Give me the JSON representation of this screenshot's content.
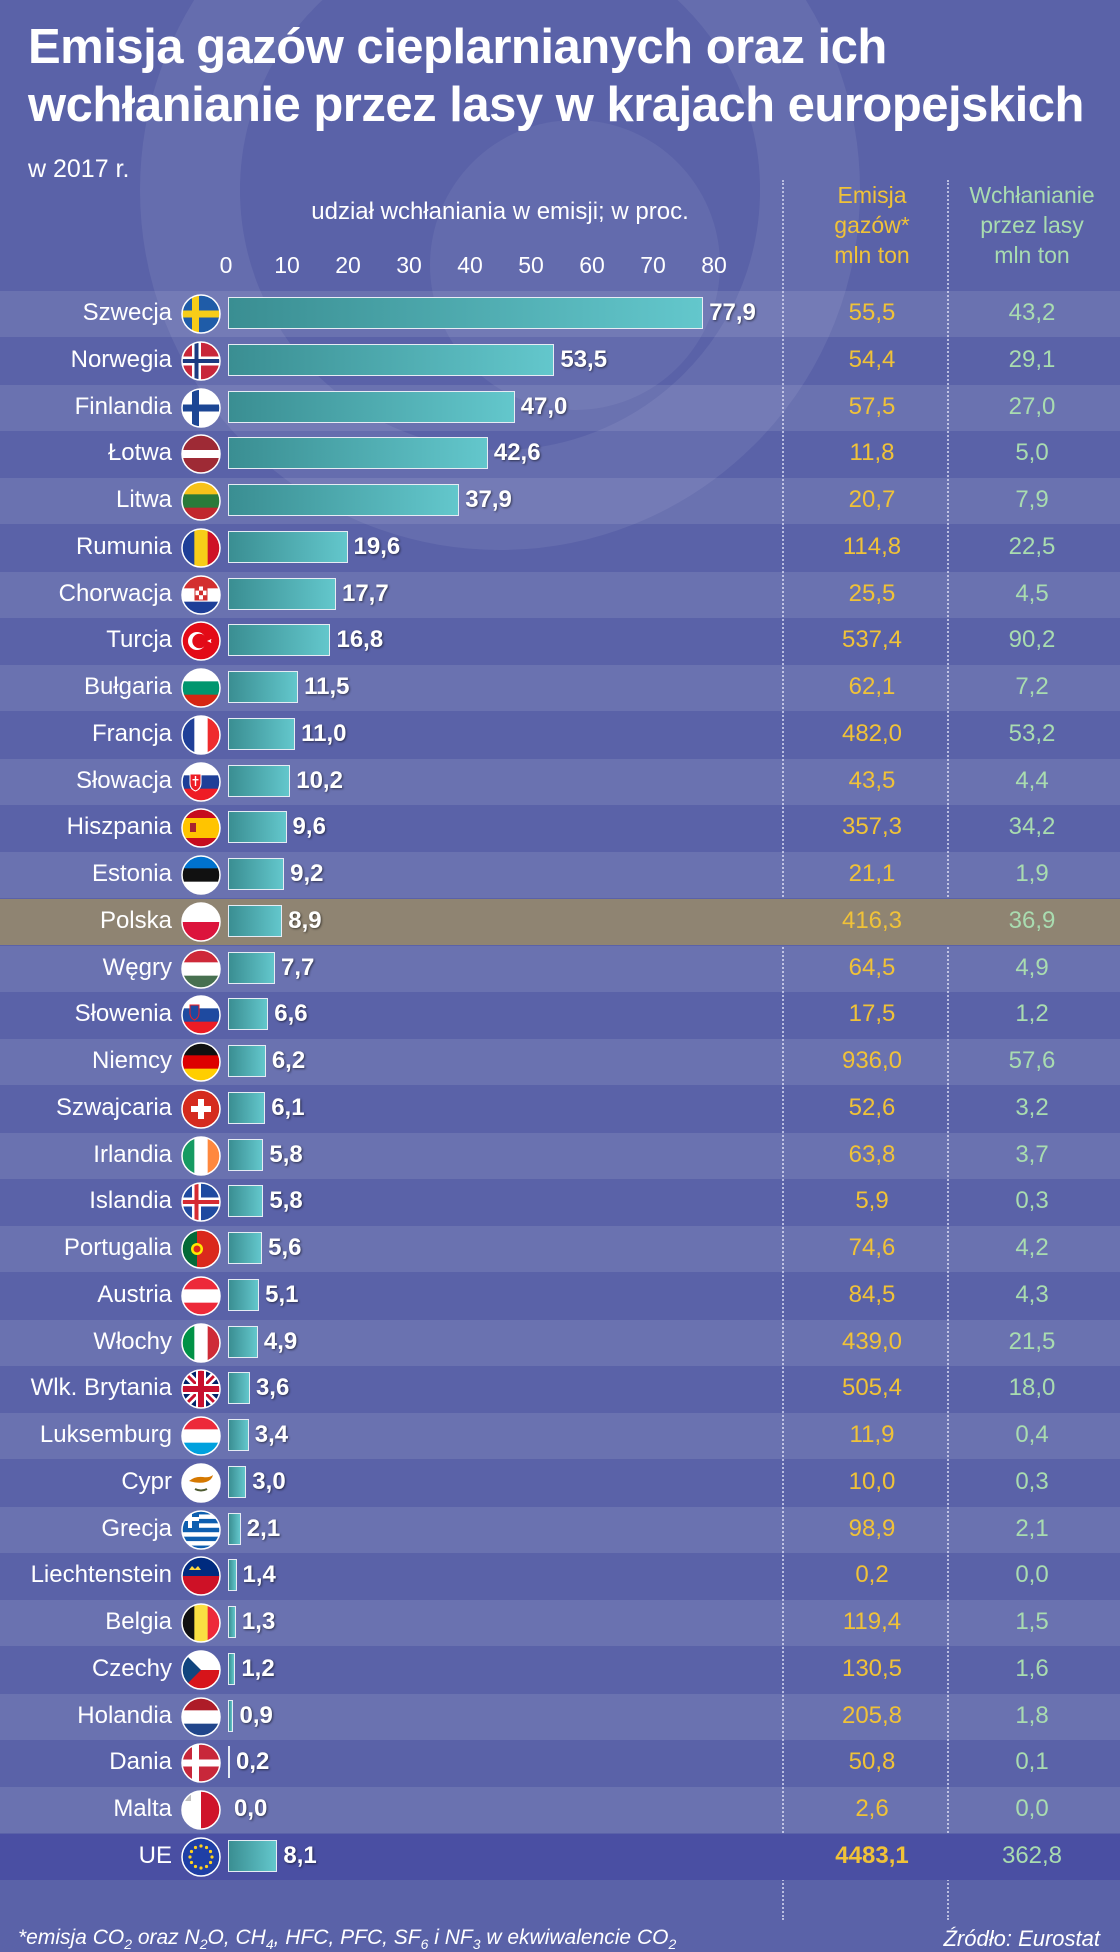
{
  "title": "Emisja gazów cieplarnianych oraz ich wchłanianie przez lasy w krajach europejskich",
  "subtitle": "w 2017 r.",
  "footnote": {
    "prefix": "*emisja CO",
    "s1": "2",
    "m1": " oraz N",
    "s2": "2",
    "m2": "O, CH",
    "s3": "4",
    "m3": ", HFC, PFC, SF",
    "s4": "6",
    "m4": " i NF",
    "s5": "3",
    "m5": " w ekwiwalencie CO",
    "s6": "2"
  },
  "source": "Źródło: Eurostat",
  "colors": {
    "background": "#5a62a8",
    "bar": "#4fb3b8",
    "emission": "#f0c238",
    "absorption": "#a9dcb0",
    "highlight": "#8f8472"
  },
  "chart_data": {
    "type": "bar",
    "orientation": "horizontal",
    "axis_title": "udział wchłaniania w emisji; w proc.",
    "xlim": [
      0,
      80
    ],
    "ticks": [
      "0",
      "10",
      "20",
      "30",
      "40",
      "50",
      "60",
      "70",
      "80"
    ],
    "column_headers": {
      "emission": [
        "Emisja",
        "gazów*",
        "mln ton"
      ],
      "absorption": [
        "Wchłanianie",
        "przez lasy",
        "mln ton"
      ]
    },
    "rows": [
      {
        "country": "Szwecja",
        "flag": "sweden-flag",
        "pct": 77.9,
        "pct_label": "77,9",
        "emission": "55,5",
        "absorption": "43,2"
      },
      {
        "country": "Norwegia",
        "flag": "norway-flag",
        "pct": 53.5,
        "pct_label": "53,5",
        "emission": "54,4",
        "absorption": "29,1"
      },
      {
        "country": "Finlandia",
        "flag": "finland-flag",
        "pct": 47.0,
        "pct_label": "47,0",
        "emission": "57,5",
        "absorption": "27,0"
      },
      {
        "country": "Łotwa",
        "flag": "latvia-flag",
        "pct": 42.6,
        "pct_label": "42,6",
        "emission": "11,8",
        "absorption": "5,0"
      },
      {
        "country": "Litwa",
        "flag": "lithuania-flag",
        "pct": 37.9,
        "pct_label": "37,9",
        "emission": "20,7",
        "absorption": "7,9"
      },
      {
        "country": "Rumunia",
        "flag": "romania-flag",
        "pct": 19.6,
        "pct_label": "19,6",
        "emission": "114,8",
        "absorption": "22,5"
      },
      {
        "country": "Chorwacja",
        "flag": "croatia-flag",
        "pct": 17.7,
        "pct_label": "17,7",
        "emission": "25,5",
        "absorption": "4,5"
      },
      {
        "country": "Turcja",
        "flag": "turkey-flag",
        "pct": 16.8,
        "pct_label": "16,8",
        "emission": "537,4",
        "absorption": "90,2"
      },
      {
        "country": "Bułgaria",
        "flag": "bulgaria-flag",
        "pct": 11.5,
        "pct_label": "11,5",
        "emission": "62,1",
        "absorption": "7,2"
      },
      {
        "country": "Francja",
        "flag": "france-flag",
        "pct": 11.0,
        "pct_label": "11,0",
        "emission": "482,0",
        "absorption": "53,2"
      },
      {
        "country": "Słowacja",
        "flag": "slovakia-flag",
        "pct": 10.2,
        "pct_label": "10,2",
        "emission": "43,5",
        "absorption": "4,4"
      },
      {
        "country": "Hiszpania",
        "flag": "spain-flag",
        "pct": 9.6,
        "pct_label": "9,6",
        "emission": "357,3",
        "absorption": "34,2"
      },
      {
        "country": "Estonia",
        "flag": "estonia-flag",
        "pct": 9.2,
        "pct_label": "9,2",
        "emission": "21,1",
        "absorption": "1,9"
      },
      {
        "country": "Polska",
        "flag": "poland-flag",
        "pct": 8.9,
        "pct_label": "8,9",
        "emission": "416,3",
        "absorption": "36,9",
        "highlight": true
      },
      {
        "country": "Węgry",
        "flag": "hungary-flag",
        "pct": 7.7,
        "pct_label": "7,7",
        "emission": "64,5",
        "absorption": "4,9"
      },
      {
        "country": "Słowenia",
        "flag": "slovenia-flag",
        "pct": 6.6,
        "pct_label": "6,6",
        "emission": "17,5",
        "absorption": "1,2"
      },
      {
        "country": "Niemcy",
        "flag": "germany-flag",
        "pct": 6.2,
        "pct_label": "6,2",
        "emission": "936,0",
        "absorption": "57,6"
      },
      {
        "country": "Szwajcaria",
        "flag": "switzerland-flag",
        "pct": 6.1,
        "pct_label": "6,1",
        "emission": "52,6",
        "absorption": "3,2"
      },
      {
        "country": "Irlandia",
        "flag": "ireland-flag",
        "pct": 5.8,
        "pct_label": "5,8",
        "emission": "63,8",
        "absorption": "3,7"
      },
      {
        "country": "Islandia",
        "flag": "iceland-flag",
        "pct": 5.8,
        "pct_label": "5,8",
        "emission": "5,9",
        "absorption": "0,3"
      },
      {
        "country": "Portugalia",
        "flag": "portugal-flag",
        "pct": 5.6,
        "pct_label": "5,6",
        "emission": "74,6",
        "absorption": "4,2"
      },
      {
        "country": "Austria",
        "flag": "austria-flag",
        "pct": 5.1,
        "pct_label": "5,1",
        "emission": "84,5",
        "absorption": "4,3"
      },
      {
        "country": "Włochy",
        "flag": "italy-flag",
        "pct": 4.9,
        "pct_label": "4,9",
        "emission": "439,0",
        "absorption": "21,5"
      },
      {
        "country": "Wlk. Brytania",
        "flag": "uk-flag",
        "pct": 3.6,
        "pct_label": "3,6",
        "emission": "505,4",
        "absorption": "18,0"
      },
      {
        "country": "Luksemburg",
        "flag": "luxembourg-flag",
        "pct": 3.4,
        "pct_label": "3,4",
        "emission": "11,9",
        "absorption": "0,4"
      },
      {
        "country": "Cypr",
        "flag": "cyprus-flag",
        "pct": 3.0,
        "pct_label": "3,0",
        "emission": "10,0",
        "absorption": "0,3"
      },
      {
        "country": "Grecja",
        "flag": "greece-flag",
        "pct": 2.1,
        "pct_label": "2,1",
        "emission": "98,9",
        "absorption": "2,1"
      },
      {
        "country": "Liechtenstein",
        "flag": "liechtenstein-flag",
        "pct": 1.4,
        "pct_label": "1,4",
        "emission": "0,2",
        "absorption": "0,0"
      },
      {
        "country": "Belgia",
        "flag": "belgium-flag",
        "pct": 1.3,
        "pct_label": "1,3",
        "emission": "119,4",
        "absorption": "1,5"
      },
      {
        "country": "Czechy",
        "flag": "czechia-flag",
        "pct": 1.2,
        "pct_label": "1,2",
        "emission": "130,5",
        "absorption": "1,6"
      },
      {
        "country": "Holandia",
        "flag": "netherlands-flag",
        "pct": 0.9,
        "pct_label": "0,9",
        "emission": "205,8",
        "absorption": "1,8"
      },
      {
        "country": "Dania",
        "flag": "denmark-flag",
        "pct": 0.2,
        "pct_label": "0,2",
        "emission": "50,8",
        "absorption": "0,1"
      },
      {
        "country": "Malta",
        "flag": "malta-flag",
        "pct": 0.0,
        "pct_label": "0,0",
        "emission": "2,6",
        "absorption": "0,0"
      },
      {
        "country": "UE",
        "flag": "eu-flag",
        "pct": 8.1,
        "pct_label": "8,1",
        "emission": "4483,1",
        "absorption": "362,8",
        "total": true
      }
    ]
  }
}
